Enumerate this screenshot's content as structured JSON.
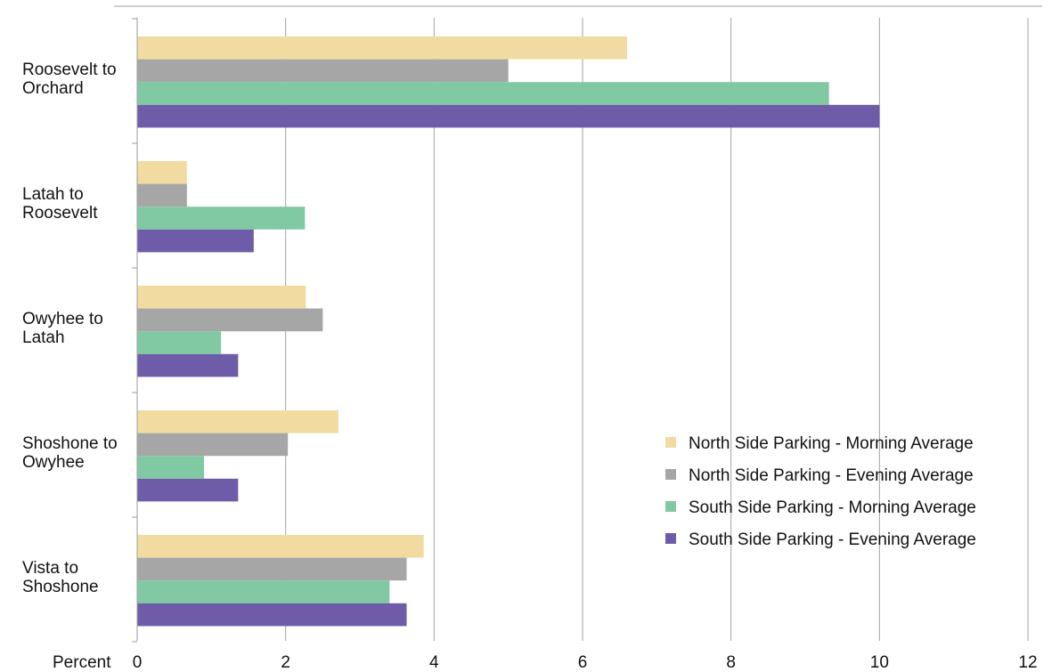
{
  "chart_data": {
    "type": "bar",
    "orientation": "horizontal",
    "categories": [
      [
        "Roosevelt to",
        "Orchard"
      ],
      [
        "Latah to",
        "Roosevelt"
      ],
      [
        "Owyhee to",
        "Latah"
      ],
      [
        "Shoshone to",
        "Owyhee"
      ],
      [
        "Vista to",
        "Shoshone"
      ]
    ],
    "series": [
      {
        "name": "North Side Parking - Morning Average",
        "color": "#f1dba0",
        "values": [
          6.6,
          0.67,
          2.27,
          2.71,
          3.86
        ]
      },
      {
        "name": "North Side Parking - Evening Average",
        "color": "#a6a6a6",
        "values": [
          5.0,
          0.67,
          2.5,
          2.03,
          3.63
        ]
      },
      {
        "name": "South Side Parking - Morning Average",
        "color": "#80c9a3",
        "values": [
          9.32,
          2.26,
          1.13,
          0.9,
          3.4
        ]
      },
      {
        "name": "South Side Parking - Evening Average",
        "color": "#6e5ca9",
        "values": [
          10.0,
          1.57,
          1.36,
          1.36,
          3.63
        ]
      }
    ],
    "xlabel": "Percent",
    "xlim": [
      0,
      12
    ],
    "xticks": [
      0,
      2,
      4,
      6,
      8,
      10,
      12
    ],
    "grid": true,
    "legend_position": "right"
  }
}
